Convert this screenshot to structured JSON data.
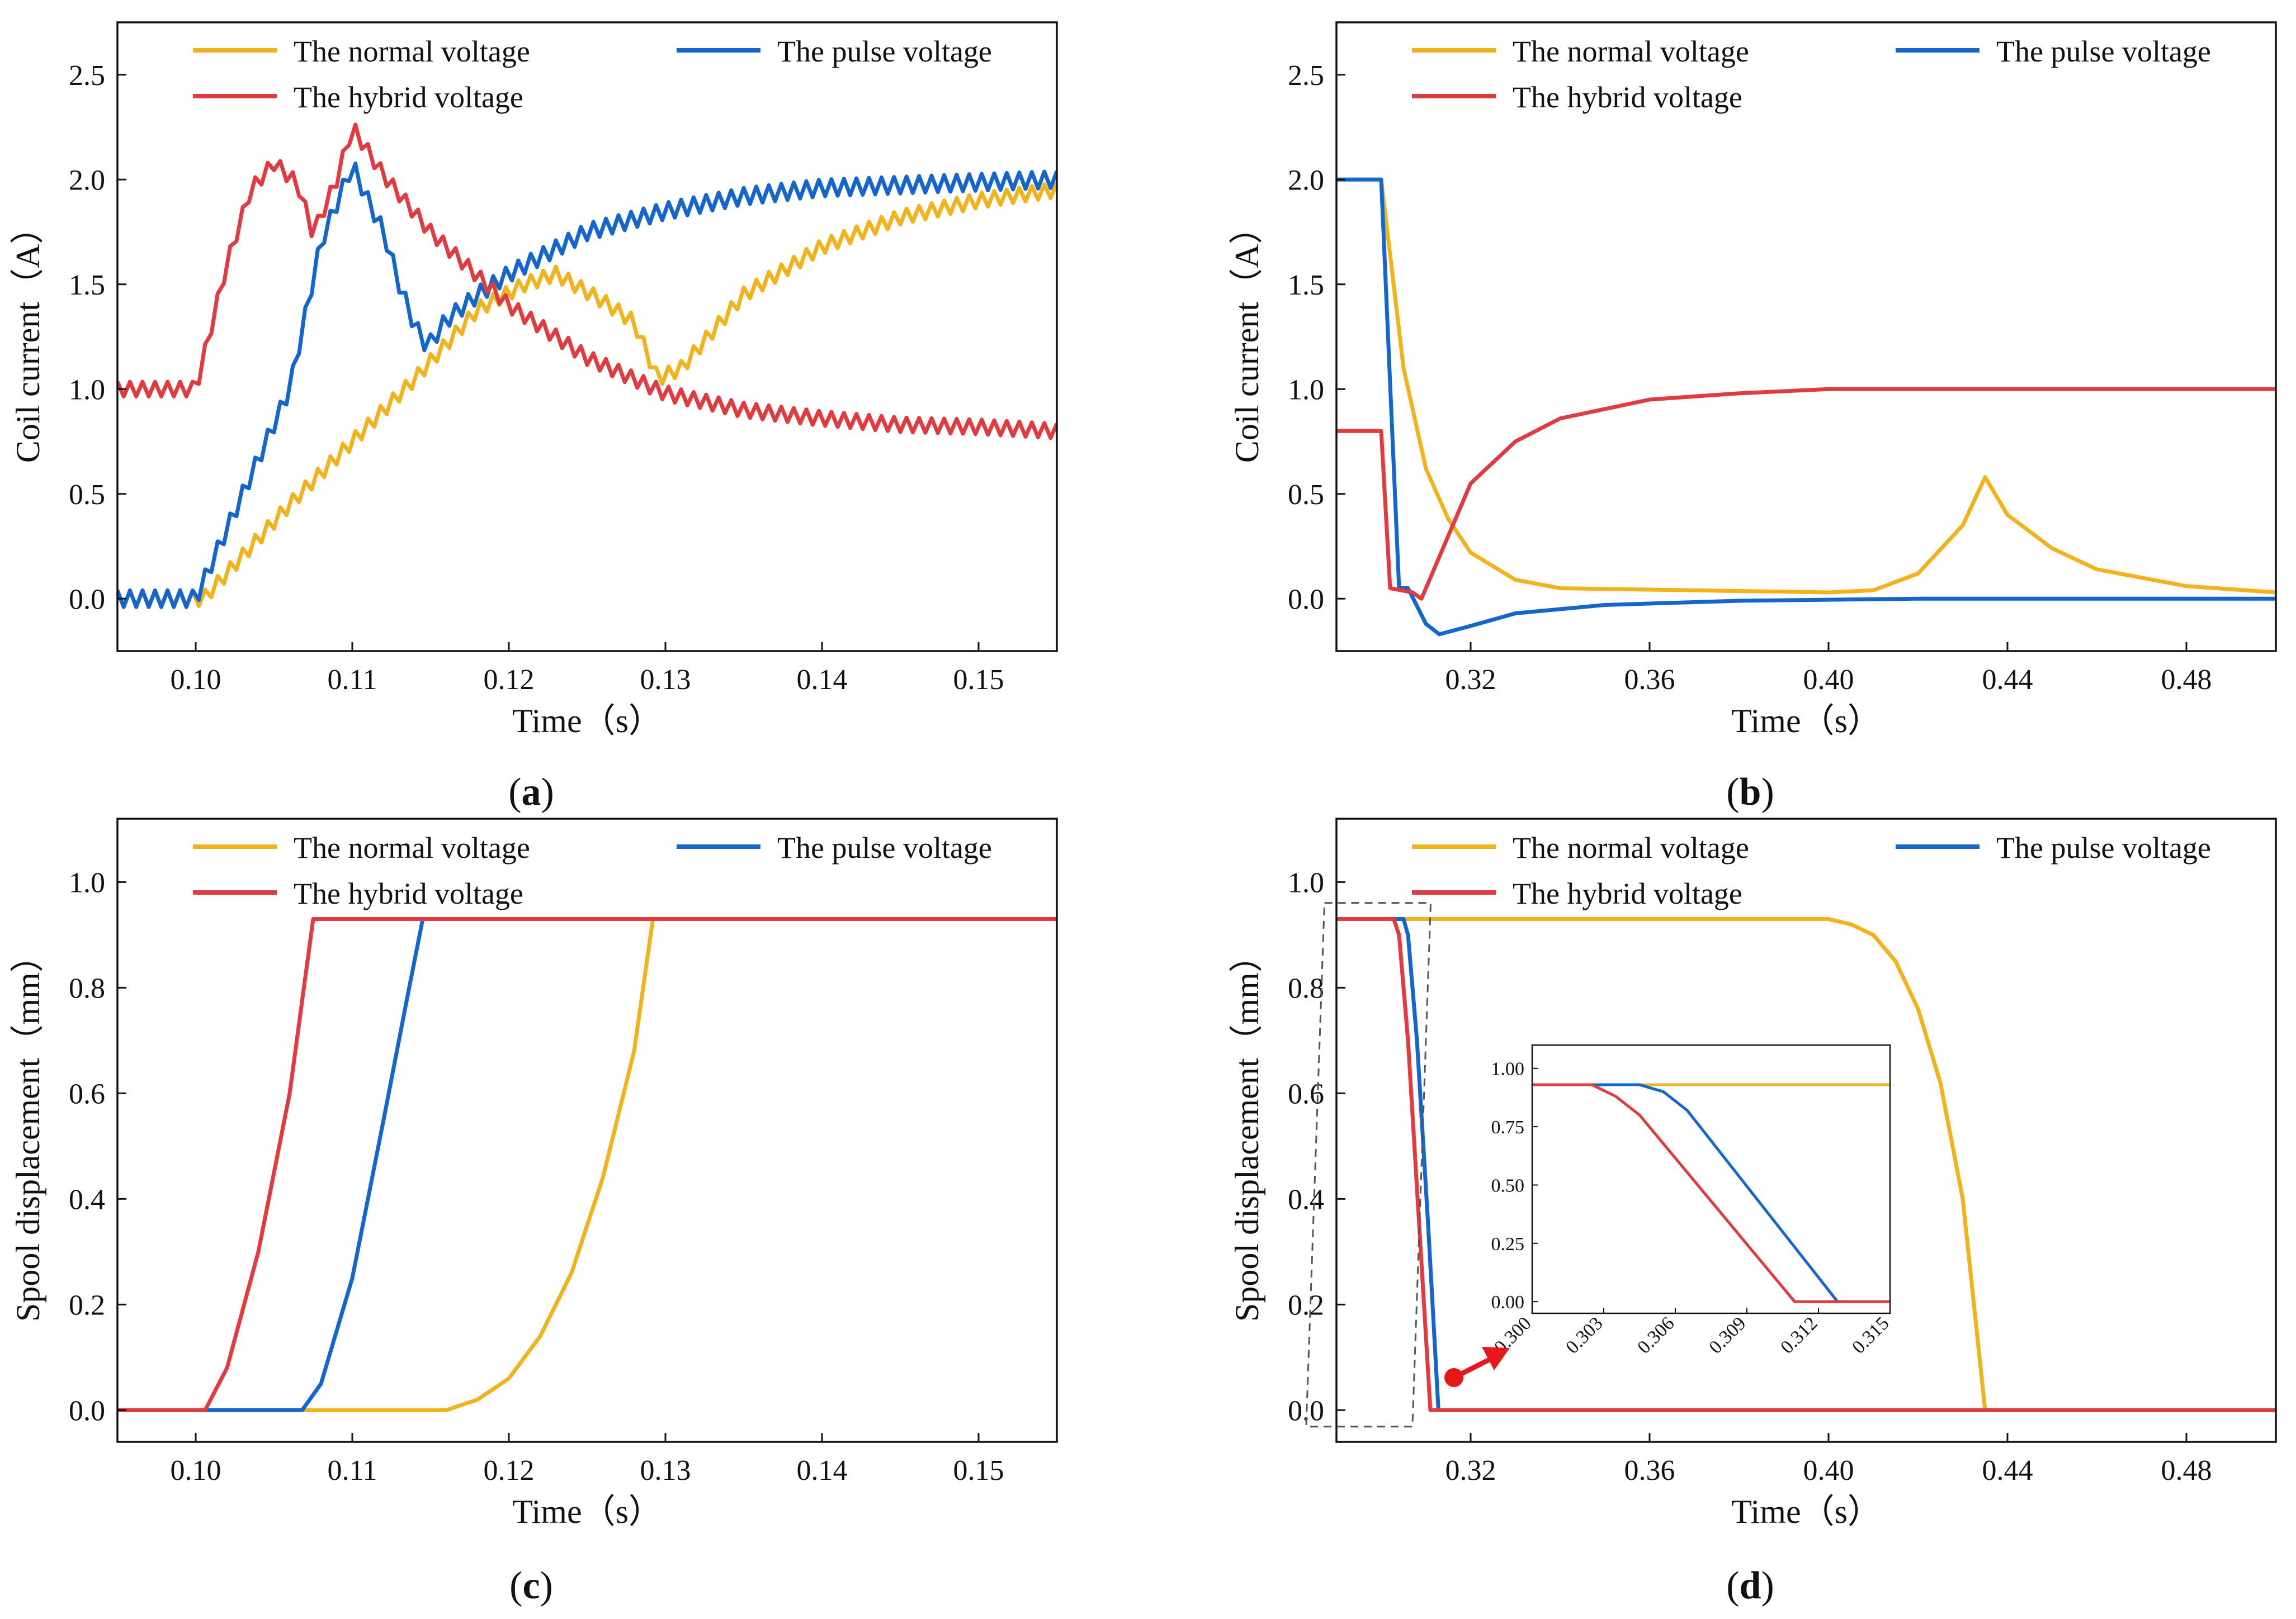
{
  "colors": {
    "normal": "#F2B21C",
    "pulse": "#1466CC",
    "hybrid": "#E23B3F",
    "axis": "#111111",
    "box": "#555555",
    "arrow": "#E8171B"
  },
  "chart_data": [
    {
      "id": "a",
      "label": "a",
      "type": "line",
      "xlabel": "Time（s）",
      "ylabel": "Coil current（A）",
      "xlim": [
        0.095,
        0.155
      ],
      "ylim": [
        -0.25,
        2.75
      ],
      "xticks": [
        0.1,
        0.11,
        0.12,
        0.13,
        0.14,
        0.15
      ],
      "xtick_labels": [
        "0.10",
        "0.11",
        "0.12",
        "0.13",
        "0.14",
        "0.15"
      ],
      "yticks": [
        0.0,
        0.5,
        1.0,
        1.5,
        2.0,
        2.5
      ],
      "ytick_labels": [
        "0.0",
        "0.5",
        "1.0",
        "1.5",
        "2.0",
        "2.5"
      ],
      "series": [
        {
          "name": "The normal voltage",
          "color_key": "normal",
          "ripple": 0.035,
          "ripple_period": 0.0008,
          "points": [
            [
              0.095,
              0.0
            ],
            [
              0.1005,
              0.0
            ],
            [
              0.106,
              0.45
            ],
            [
              0.11,
              0.75
            ],
            [
              0.114,
              1.05
            ],
            [
              0.118,
              1.38
            ],
            [
              0.121,
              1.5
            ],
            [
              0.123,
              1.55
            ],
            [
              0.126,
              1.42
            ],
            [
              0.128,
              1.32
            ],
            [
              0.1295,
              1.05
            ],
            [
              0.131,
              1.1
            ],
            [
              0.135,
              1.45
            ],
            [
              0.14,
              1.68
            ],
            [
              0.145,
              1.82
            ],
            [
              0.15,
              1.9
            ],
            [
              0.155,
              1.95
            ]
          ]
        },
        {
          "name": "The pulse voltage",
          "color_key": "pulse",
          "ripple": 0.04,
          "ripple_period": 0.0008,
          "points": [
            [
              0.095,
              0.0
            ],
            [
              0.1,
              0.0
            ],
            [
              0.106,
              1.0
            ],
            [
              0.108,
              1.7
            ],
            [
              0.11,
              2.07
            ],
            [
              0.111,
              1.9
            ],
            [
              0.112,
              1.75
            ],
            [
              0.113,
              1.5
            ],
            [
              0.114,
              1.3
            ],
            [
              0.1148,
              1.2
            ],
            [
              0.116,
              1.33
            ],
            [
              0.118,
              1.45
            ],
            [
              0.12,
              1.55
            ],
            [
              0.125,
              1.75
            ],
            [
              0.13,
              1.85
            ],
            [
              0.135,
              1.92
            ],
            [
              0.14,
              1.96
            ],
            [
              0.155,
              2.0
            ]
          ]
        },
        {
          "name": "The hybrid voltage",
          "color_key": "hybrid",
          "ripple": 0.035,
          "ripple_period": 0.0008,
          "points": [
            [
              0.095,
              1.0
            ],
            [
              0.1,
              1.0
            ],
            [
              0.102,
              1.6
            ],
            [
              0.1035,
              1.95
            ],
            [
              0.105,
              2.08
            ],
            [
              0.1065,
              1.98
            ],
            [
              0.1075,
              1.74
            ],
            [
              0.109,
              2.0
            ],
            [
              0.11,
              2.25
            ],
            [
              0.112,
              2.02
            ],
            [
              0.115,
              1.75
            ],
            [
              0.12,
              1.4
            ],
            [
              0.125,
              1.15
            ],
            [
              0.13,
              0.98
            ],
            [
              0.135,
              0.9
            ],
            [
              0.14,
              0.86
            ],
            [
              0.145,
              0.83
            ],
            [
              0.15,
              0.82
            ],
            [
              0.155,
              0.8
            ]
          ]
        }
      ],
      "legend": [
        "The normal voltage",
        "The pulse voltage",
        "The hybrid voltage"
      ]
    },
    {
      "id": "b",
      "label": "b",
      "type": "line",
      "xlabel": "Time（s）",
      "ylabel": "Coil current（A）",
      "xlim": [
        0.29,
        0.5
      ],
      "ylim": [
        -0.25,
        2.75
      ],
      "xticks": [
        0.32,
        0.36,
        0.4,
        0.44,
        0.48
      ],
      "xtick_labels": [
        "0.32",
        "0.36",
        "0.40",
        "0.44",
        "0.48"
      ],
      "yticks": [
        0.0,
        0.5,
        1.0,
        1.5,
        2.0,
        2.5
      ],
      "ytick_labels": [
        "0.0",
        "0.5",
        "1.0",
        "1.5",
        "2.0",
        "2.5"
      ],
      "series": [
        {
          "name": "The normal voltage",
          "color_key": "normal",
          "ripple": 0,
          "ripple_period": 0,
          "points": [
            [
              0.29,
              2.0
            ],
            [
              0.3,
              2.0
            ],
            [
              0.305,
              1.1
            ],
            [
              0.31,
              0.62
            ],
            [
              0.315,
              0.38
            ],
            [
              0.32,
              0.22
            ],
            [
              0.33,
              0.09
            ],
            [
              0.34,
              0.05
            ],
            [
              0.37,
              0.04
            ],
            [
              0.4,
              0.03
            ],
            [
              0.41,
              0.04
            ],
            [
              0.42,
              0.12
            ],
            [
              0.43,
              0.35
            ],
            [
              0.435,
              0.58
            ],
            [
              0.44,
              0.4
            ],
            [
              0.45,
              0.24
            ],
            [
              0.46,
              0.14
            ],
            [
              0.48,
              0.06
            ],
            [
              0.5,
              0.03
            ]
          ]
        },
        {
          "name": "The pulse voltage",
          "color_key": "pulse",
          "ripple": 0,
          "ripple_period": 0,
          "points": [
            [
              0.29,
              2.0
            ],
            [
              0.3,
              2.0
            ],
            [
              0.304,
              0.05
            ],
            [
              0.306,
              0.05
            ],
            [
              0.31,
              -0.12
            ],
            [
              0.313,
              -0.17
            ],
            [
              0.32,
              -0.13
            ],
            [
              0.33,
              -0.07
            ],
            [
              0.35,
              -0.03
            ],
            [
              0.38,
              -0.01
            ],
            [
              0.42,
              0.0
            ],
            [
              0.5,
              0.0
            ]
          ]
        },
        {
          "name": "The hybrid voltage",
          "color_key": "hybrid",
          "ripple": 0,
          "ripple_period": 0,
          "points": [
            [
              0.29,
              0.8
            ],
            [
              0.3,
              0.8
            ],
            [
              0.302,
              0.05
            ],
            [
              0.307,
              0.03
            ],
            [
              0.309,
              0.0
            ],
            [
              0.32,
              0.55
            ],
            [
              0.33,
              0.75
            ],
            [
              0.34,
              0.86
            ],
            [
              0.36,
              0.95
            ],
            [
              0.38,
              0.98
            ],
            [
              0.4,
              1.0
            ],
            [
              0.5,
              1.0
            ]
          ]
        }
      ],
      "legend": [
        "The normal voltage",
        "The pulse voltage",
        "The hybrid voltage"
      ]
    },
    {
      "id": "c",
      "label": "c",
      "type": "line",
      "xlabel": "Time（s）",
      "ylabel": "Spool displacement（mm）",
      "xlim": [
        0.095,
        0.155
      ],
      "ylim": [
        -0.06,
        1.12
      ],
      "xticks": [
        0.1,
        0.11,
        0.12,
        0.13,
        0.14,
        0.15
      ],
      "xtick_labels": [
        "0.10",
        "0.11",
        "0.12",
        "0.13",
        "0.14",
        "0.15"
      ],
      "yticks": [
        0.0,
        0.2,
        0.4,
        0.6,
        0.8,
        1.0
      ],
      "ytick_labels": [
        "0.0",
        "0.2",
        "0.4",
        "0.6",
        "0.8",
        "1.0"
      ],
      "series": [
        {
          "name": "The normal voltage",
          "color_key": "normal",
          "ripple": 0,
          "ripple_period": 0,
          "points": [
            [
              0.095,
              0.0
            ],
            [
              0.116,
              0.0
            ],
            [
              0.118,
              0.02
            ],
            [
              0.12,
              0.06
            ],
            [
              0.122,
              0.14
            ],
            [
              0.124,
              0.26
            ],
            [
              0.126,
              0.44
            ],
            [
              0.128,
              0.68
            ],
            [
              0.1292,
              0.93
            ],
            [
              0.155,
              0.93
            ]
          ]
        },
        {
          "name": "The pulse voltage",
          "color_key": "pulse",
          "ripple": 0,
          "ripple_period": 0,
          "points": [
            [
              0.095,
              0.0
            ],
            [
              0.1068,
              0.0
            ],
            [
              0.108,
              0.05
            ],
            [
              0.11,
              0.25
            ],
            [
              0.112,
              0.55
            ],
            [
              0.1135,
              0.78
            ],
            [
              0.1145,
              0.93
            ],
            [
              0.155,
              0.93
            ]
          ]
        },
        {
          "name": "The hybrid voltage",
          "color_key": "hybrid",
          "ripple": 0,
          "ripple_period": 0,
          "points": [
            [
              0.095,
              0.0
            ],
            [
              0.1006,
              0.0
            ],
            [
              0.102,
              0.08
            ],
            [
              0.104,
              0.3
            ],
            [
              0.106,
              0.6
            ],
            [
              0.1075,
              0.93
            ],
            [
              0.155,
              0.93
            ]
          ]
        }
      ],
      "legend": [
        "The normal voltage",
        "The pulse voltage",
        "The hybrid voltage"
      ]
    },
    {
      "id": "d",
      "label": "d",
      "type": "line",
      "xlabel": "Time（s）",
      "ylabel": "Spool displacement（mm）",
      "xlim": [
        0.29,
        0.5
      ],
      "ylim": [
        -0.06,
        1.12
      ],
      "xticks": [
        0.32,
        0.36,
        0.4,
        0.44,
        0.48
      ],
      "xtick_labels": [
        "0.32",
        "0.36",
        "0.40",
        "0.44",
        "0.48"
      ],
      "yticks": [
        0.0,
        0.2,
        0.4,
        0.6,
        0.8,
        1.0
      ],
      "ytick_labels": [
        "0.0",
        "0.2",
        "0.4",
        "0.6",
        "0.8",
        "1.0"
      ],
      "series": [
        {
          "name": "The normal voltage",
          "color_key": "normal",
          "ripple": 0,
          "ripple_period": 0,
          "points": [
            [
              0.29,
              0.93
            ],
            [
              0.4,
              0.93
            ],
            [
              0.405,
              0.92
            ],
            [
              0.41,
              0.9
            ],
            [
              0.415,
              0.85
            ],
            [
              0.42,
              0.76
            ],
            [
              0.425,
              0.62
            ],
            [
              0.43,
              0.4
            ],
            [
              0.435,
              0.0
            ],
            [
              0.5,
              0.0
            ]
          ]
        },
        {
          "name": "The pulse voltage",
          "color_key": "pulse",
          "ripple": 0,
          "ripple_period": 0,
          "points": [
            [
              0.29,
              0.93
            ],
            [
              0.305,
              0.93
            ],
            [
              0.306,
              0.9
            ],
            [
              0.308,
              0.7
            ],
            [
              0.3105,
              0.35
            ],
            [
              0.3128,
              0.0
            ],
            [
              0.5,
              0.0
            ]
          ]
        },
        {
          "name": "The hybrid voltage",
          "color_key": "hybrid",
          "ripple": 0,
          "ripple_period": 0,
          "points": [
            [
              0.29,
              0.93
            ],
            [
              0.3028,
              0.93
            ],
            [
              0.304,
              0.9
            ],
            [
              0.306,
              0.7
            ],
            [
              0.3085,
              0.35
            ],
            [
              0.311,
              0.0
            ],
            [
              0.5,
              0.0
            ]
          ]
        }
      ],
      "legend": [
        "The normal voltage",
        "The pulse voltage",
        "The hybrid voltage"
      ],
      "zoom_box": {
        "x": [
          0.3,
          0.315
        ],
        "y": [
          -0.01,
          0.95
        ]
      },
      "inset": {
        "xlim": [
          0.3,
          0.315
        ],
        "ylim": [
          -0.05,
          1.1
        ],
        "xticks": [
          0.3,
          0.303,
          0.306,
          0.309,
          0.312,
          0.315
        ],
        "xtick_labels": [
          "0.300",
          "0.303",
          "0.306",
          "0.309",
          "0.312",
          "0.315"
        ],
        "yticks": [
          0.0,
          0.25,
          0.5,
          0.75,
          1.0
        ],
        "ytick_labels": [
          "0.00",
          "0.25",
          "0.50",
          "0.75",
          "1.00"
        ],
        "series": [
          {
            "name": "The normal voltage",
            "color_key": "normal",
            "points": [
              [
                0.3,
                0.93
              ],
              [
                0.315,
                0.93
              ]
            ]
          },
          {
            "name": "The pulse voltage",
            "color_key": "pulse",
            "points": [
              [
                0.3,
                0.93
              ],
              [
                0.3045,
                0.93
              ],
              [
                0.3055,
                0.9
              ],
              [
                0.3065,
                0.82
              ],
              [
                0.3128,
                0.0
              ],
              [
                0.315,
                0.0
              ]
            ]
          },
          {
            "name": "The hybrid voltage",
            "color_key": "hybrid",
            "points": [
              [
                0.3,
                0.93
              ],
              [
                0.3025,
                0.93
              ],
              [
                0.3035,
                0.88
              ],
              [
                0.3045,
                0.8
              ],
              [
                0.311,
                0.0
              ],
              [
                0.315,
                0.0
              ]
            ]
          }
        ]
      }
    }
  ]
}
